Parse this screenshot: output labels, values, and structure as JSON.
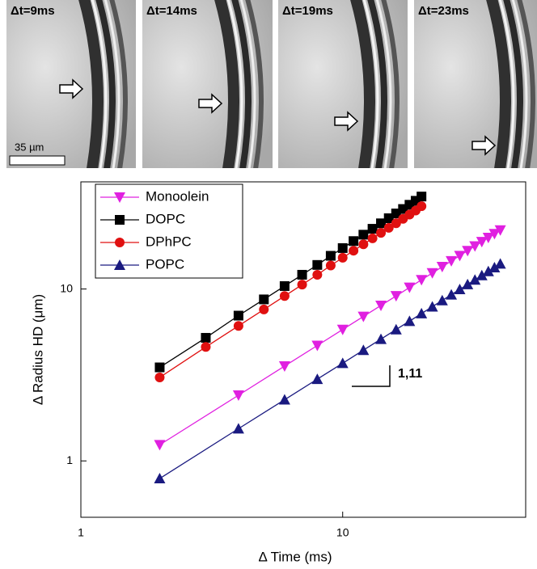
{
  "panels": [
    {
      "label": "Δt=9ms"
    },
    {
      "label": "Δt=14ms"
    },
    {
      "label": "Δt=19ms"
    },
    {
      "label": "Δt=23ms"
    }
  ],
  "scale_bar": "35 µm",
  "chart_data": {
    "type": "line",
    "xlabel": "Δ Time (ms)",
    "ylabel": "Δ Radius HD (μm)",
    "xscale": "log",
    "yscale": "log",
    "xlim": [
      1,
      50
    ],
    "ylim": [
      0.47,
      42
    ],
    "xticks": [
      1,
      10
    ],
    "yticks": [
      1,
      10
    ],
    "legend": "upper left",
    "annotation": "1,11",
    "series": [
      {
        "name": "Monoolein",
        "color": "#e020e0",
        "marker": "triangle-down",
        "x": [
          2,
          4,
          6,
          8,
          10,
          12,
          14,
          16,
          18,
          20,
          22,
          24,
          26,
          28,
          30,
          32,
          34,
          36,
          38,
          40
        ],
        "values": [
          1.24,
          2.41,
          3.56,
          4.69,
          5.81,
          6.92,
          8.02,
          9.11,
          10.21,
          11.31,
          12.39,
          13.47,
          14.55,
          15.62,
          16.69,
          17.76,
          18.82,
          19.89,
          20.94,
          22.0
        ]
      },
      {
        "name": "DOPC",
        "color": "#000000",
        "marker": "square",
        "x": [
          2,
          3,
          4,
          5,
          6,
          7,
          8,
          9,
          10,
          11,
          12,
          13,
          14,
          15,
          16,
          17,
          18,
          19,
          20
        ],
        "values": [
          3.5,
          5.2,
          7.0,
          8.7,
          10.4,
          12.1,
          13.8,
          15.6,
          17.3,
          19.0,
          20.7,
          22.4,
          24.1,
          25.8,
          27.5,
          29.2,
          30.9,
          32.6,
          34.5
        ]
      },
      {
        "name": "DPhPC",
        "color": "#e01010",
        "marker": "circle",
        "x": [
          2,
          3,
          4,
          5,
          6,
          7,
          8,
          9,
          10,
          11,
          12,
          13,
          14,
          15,
          16,
          17,
          18,
          19,
          20
        ],
        "values": [
          3.06,
          4.6,
          6.1,
          7.6,
          9.1,
          10.6,
          12.1,
          13.7,
          15.2,
          16.7,
          18.2,
          19.7,
          21.2,
          22.7,
          24.1,
          25.6,
          27.1,
          28.6,
          30.3
        ]
      },
      {
        "name": "POPC",
        "color": "#1a1a80",
        "marker": "triangle-up",
        "x": [
          2,
          4,
          6,
          8,
          10,
          12,
          14,
          16,
          18,
          20,
          22,
          24,
          26,
          28,
          30,
          32,
          34,
          36,
          38,
          40
        ],
        "values": [
          0.79,
          1.54,
          2.27,
          2.99,
          3.7,
          4.41,
          5.11,
          5.81,
          6.5,
          7.2,
          7.89,
          8.58,
          9.27,
          9.95,
          10.63,
          11.31,
          11.99,
          12.67,
          13.34,
          14.01
        ]
      }
    ]
  }
}
